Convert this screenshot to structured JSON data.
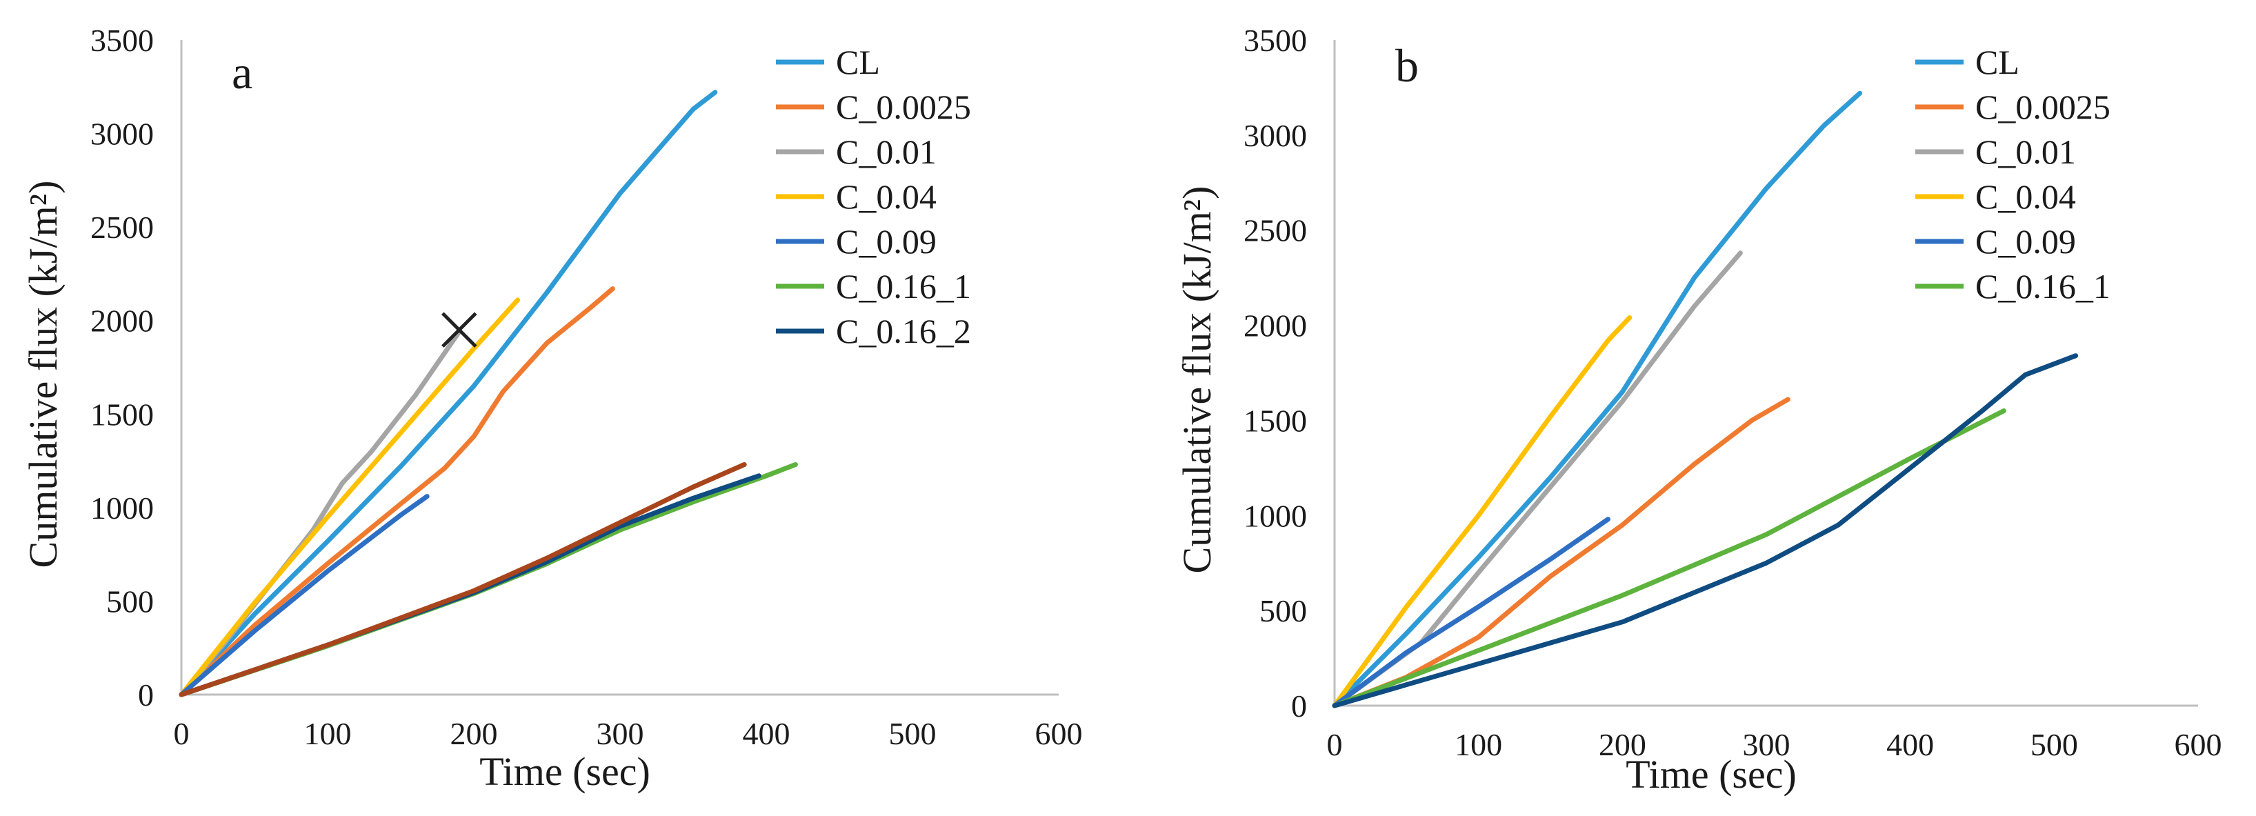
{
  "chart_data": [
    {
      "type": "line",
      "panel_label": "a",
      "xlabel": "Time (sec)",
      "ylabel": "Cumulative flux (kJ/m²)",
      "xlim": [
        0,
        600
      ],
      "ylim": [
        0,
        3500
      ],
      "xticks": [
        0,
        100,
        200,
        300,
        400,
        500,
        600
      ],
      "yticks": [
        0,
        500,
        1000,
        1500,
        2000,
        2500,
        3000,
        3500
      ],
      "legend_position": "top-right",
      "legend": [
        "CL",
        "C_0.0025",
        "C_0.01",
        "C_0.04",
        "C_0.09",
        "C_0.16_1",
        "C_0.16_2"
      ],
      "annotations": [
        {
          "type": "x-marker",
          "x": 190,
          "y": 1950
        }
      ],
      "series": [
        {
          "name": "CL",
          "color": "#2E9BD6",
          "x": [
            0,
            50,
            100,
            150,
            200,
            250,
            300,
            330,
            350,
            365
          ],
          "y": [
            0,
            430,
            820,
            1220,
            1650,
            2150,
            2680,
            2950,
            3130,
            3220
          ]
        },
        {
          "name": "C_0.0025",
          "color": "#F07B30",
          "x": [
            0,
            50,
            100,
            150,
            180,
            200,
            220,
            250,
            280,
            295
          ],
          "y": [
            0,
            370,
            700,
            1020,
            1210,
            1380,
            1620,
            1880,
            2070,
            2170
          ]
        },
        {
          "name": "C_0.01",
          "color": "#A5A5A5",
          "x": [
            0,
            30,
            60,
            90,
            110,
            130,
            160,
            190
          ],
          "y": [
            0,
            280,
            580,
            880,
            1130,
            1300,
            1600,
            1940
          ]
        },
        {
          "name": "C_0.04",
          "color": "#FFC000",
          "x": [
            0,
            50,
            100,
            150,
            200,
            230
          ],
          "y": [
            0,
            490,
            950,
            1400,
            1850,
            2110
          ]
        },
        {
          "name": "C_0.09",
          "color": "#2E6FC4",
          "x": [
            0,
            50,
            100,
            150,
            168
          ],
          "y": [
            0,
            340,
            660,
            960,
            1060
          ]
        },
        {
          "name": "C_0.16_1",
          "color": "#5DB33D",
          "x": [
            0,
            100,
            200,
            250,
            300,
            350,
            400,
            420
          ],
          "y": [
            0,
            260,
            540,
            700,
            880,
            1030,
            1170,
            1230
          ]
        },
        {
          "name": "C_0.16_2",
          "color": "#0F4C81",
          "x": [
            0,
            100,
            200,
            250,
            300,
            350,
            395
          ],
          "y": [
            0,
            265,
            545,
            710,
            900,
            1050,
            1170
          ]
        },
        {
          "name": "",
          "color": "#A9451C",
          "x": [
            0,
            100,
            200,
            250,
            300,
            350,
            385
          ],
          "y": [
            0,
            265,
            555,
            730,
            920,
            1110,
            1230
          ]
        }
      ]
    },
    {
      "type": "line",
      "panel_label": "b",
      "xlabel": "Time (sec)",
      "ylabel": "Cumulative flux (kJ/m²)",
      "xlim": [
        0,
        600
      ],
      "ylim": [
        0,
        3500
      ],
      "xticks": [
        0,
        100,
        200,
        300,
        400,
        500,
        600
      ],
      "yticks": [
        0,
        500,
        1000,
        1500,
        2000,
        2500,
        3000,
        3500
      ],
      "legend_position": "top-right",
      "legend": [
        "CL",
        "C_0.0025",
        "C_0.01",
        "C_0.04",
        "C_0.09",
        "C_0.16_1"
      ],
      "series": [
        {
          "name": "CL",
          "color": "#2E9BD6",
          "x": [
            0,
            50,
            100,
            150,
            200,
            250,
            300,
            340,
            365
          ],
          "y": [
            0,
            380,
            780,
            1200,
            1650,
            2250,
            2720,
            3050,
            3220
          ]
        },
        {
          "name": "C_0.0025",
          "color": "#F07B30",
          "x": [
            0,
            50,
            100,
            150,
            200,
            250,
            290,
            315
          ],
          "y": [
            0,
            150,
            360,
            680,
            950,
            1270,
            1500,
            1610
          ]
        },
        {
          "name": "C_0.01",
          "color": "#A5A5A5",
          "x": [
            0,
            60,
            100,
            150,
            200,
            250,
            282
          ],
          "y": [
            0,
            330,
            700,
            1150,
            1600,
            2100,
            2380
          ]
        },
        {
          "name": "C_0.04",
          "color": "#FFC000",
          "x": [
            0,
            50,
            100,
            150,
            190,
            205
          ],
          "y": [
            0,
            520,
            1000,
            1520,
            1920,
            2040
          ]
        },
        {
          "name": "C_0.09",
          "color": "#2E6FC4",
          "x": [
            0,
            50,
            100,
            150,
            190
          ],
          "y": [
            0,
            280,
            520,
            770,
            980
          ]
        },
        {
          "name": "C_0.16_1",
          "color": "#5DB33D",
          "x": [
            0,
            100,
            200,
            300,
            400,
            465
          ],
          "y": [
            0,
            290,
            580,
            900,
            1300,
            1550
          ]
        },
        {
          "name": "",
          "color": "#0F4C81",
          "x": [
            0,
            100,
            200,
            300,
            350,
            400,
            450,
            480,
            515
          ],
          "y": [
            0,
            220,
            440,
            750,
            950,
            1250,
            1550,
            1740,
            1840
          ]
        }
      ]
    }
  ]
}
